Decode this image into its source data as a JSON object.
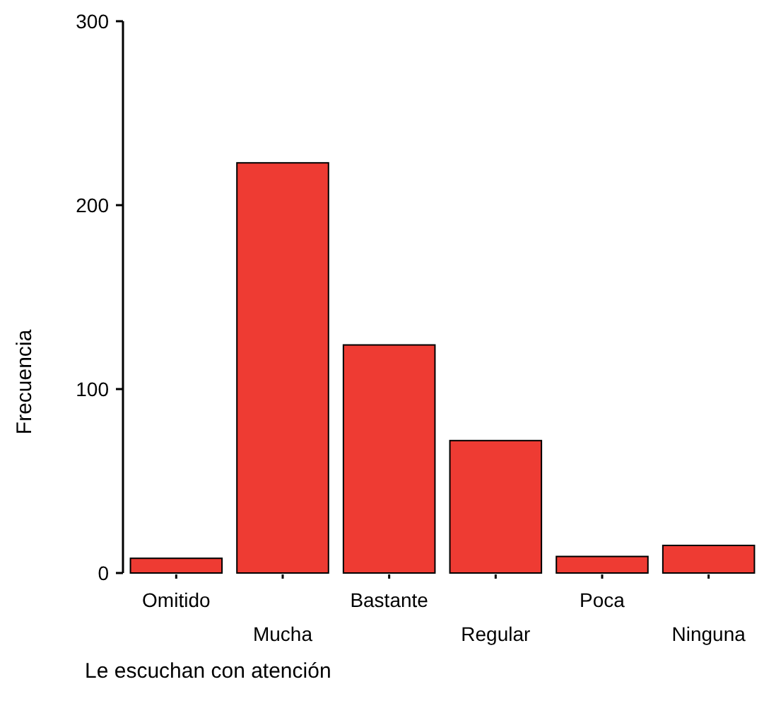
{
  "chart_data": {
    "type": "bar",
    "xlabel": "Le escuchan con atención",
    "ylabel": "Frecuencia",
    "categories": [
      "Omitido",
      "Mucha",
      "Bastante",
      "Regular",
      "Poca",
      "Ninguna"
    ],
    "values": [
      8,
      223,
      124,
      72,
      9,
      15
    ],
    "color": "#ee3b33",
    "ylim": [
      0,
      300
    ],
    "yticks": [
      0,
      100,
      200,
      300
    ],
    "grid": false
  }
}
